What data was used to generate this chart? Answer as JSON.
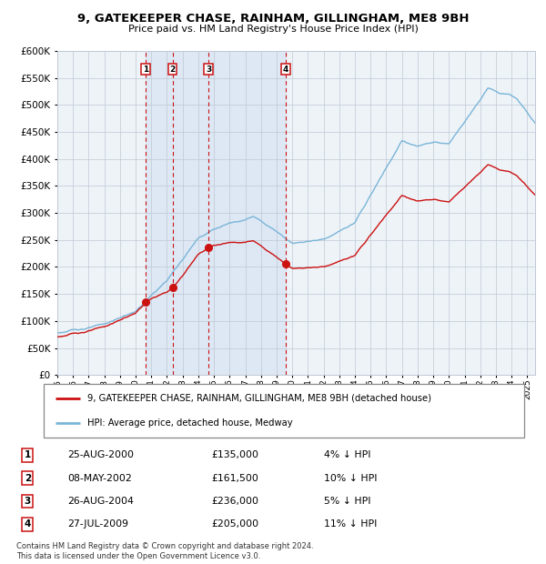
{
  "title": "9, GATEKEEPER CHASE, RAINHAM, GILLINGHAM, ME8 9BH",
  "subtitle": "Price paid vs. HM Land Registry's House Price Index (HPI)",
  "ylim": [
    0,
    600000
  ],
  "yticks": [
    0,
    50000,
    100000,
    150000,
    200000,
    250000,
    300000,
    350000,
    400000,
    450000,
    500000,
    550000,
    600000
  ],
  "xlim_start": 1995.0,
  "xlim_end": 2025.5,
  "hpi_color": "#7ab5d8",
  "sale_color": "#cc1111",
  "bg_color": "#eef3f8",
  "highlight_color": "#dde8f4",
  "grid_color": "#c0c8d4",
  "sale_dates_num": [
    2000.647,
    2002.353,
    2004.653,
    2009.569
  ],
  "sale_prices": [
    135000,
    161500,
    236000,
    205000
  ],
  "sale_labels": [
    "1",
    "2",
    "3",
    "4"
  ],
  "sale_info": [
    {
      "label": "1",
      "date": "25-AUG-2000",
      "price": "£135,000",
      "pct": "4% ↓ HPI"
    },
    {
      "label": "2",
      "date": "08-MAY-2002",
      "price": "£161,500",
      "pct": "10% ↓ HPI"
    },
    {
      "label": "3",
      "date": "26-AUG-2004",
      "price": "£236,000",
      "pct": "5% ↓ HPI"
    },
    {
      "label": "4",
      "date": "27-JUL-2009",
      "price": "£205,000",
      "pct": "11% ↓ HPI"
    }
  ],
  "legend_line1": "9, GATEKEEPER CHASE, RAINHAM, GILLINGHAM, ME8 9BH (detached house)",
  "legend_line2": "HPI: Average price, detached house, Medway",
  "footnote": "Contains HM Land Registry data © Crown copyright and database right 2024.\nThis data is licensed under the Open Government Licence v3.0."
}
